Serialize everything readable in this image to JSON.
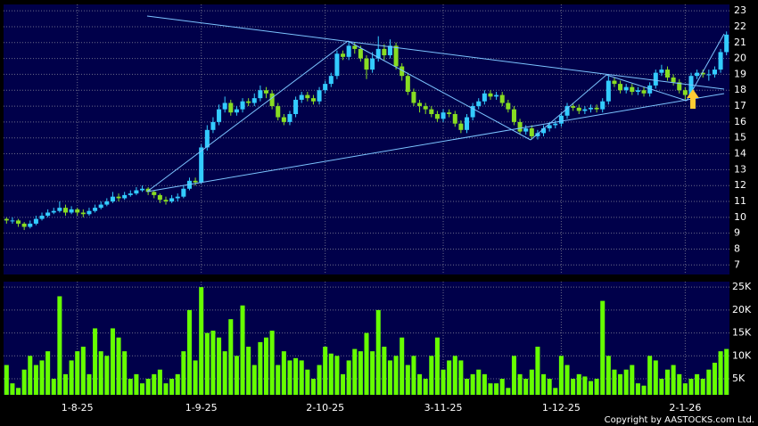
{
  "chart_data": {
    "type": "candlestick",
    "categories": [
      null,
      null,
      null,
      null,
      null,
      null,
      null,
      null,
      null,
      null,
      null,
      null,
      "1-8-25",
      null,
      null,
      null,
      null,
      null,
      null,
      null,
      null,
      null,
      null,
      null,
      null,
      null,
      null,
      null,
      null,
      null,
      null,
      null,
      null,
      "1-9-25",
      null,
      null,
      null,
      null,
      null,
      null,
      null,
      null,
      null,
      null,
      null,
      null,
      null,
      null,
      null,
      null,
      null,
      null,
      null,
      null,
      "2-10-25",
      null,
      null,
      null,
      null,
      null,
      null,
      null,
      null,
      null,
      null,
      null,
      null,
      null,
      null,
      null,
      null,
      null,
      null,
      null,
      "3-11-25",
      null,
      null,
      null,
      null,
      null,
      null,
      null,
      null,
      null,
      null,
      null,
      null,
      null,
      null,
      null,
      null,
      null,
      null,
      null,
      "1-12-25",
      null,
      null,
      null,
      null,
      null,
      null,
      null,
      null,
      null,
      null,
      null,
      null,
      null,
      null,
      null,
      null,
      null,
      null,
      null,
      null,
      "2-1-26",
      null,
      null,
      null,
      null,
      null,
      null,
      null
    ],
    "open": [
      9.9,
      9.8,
      9.8,
      9.6,
      9.4,
      9.6,
      9.9,
      10.1,
      10.3,
      10.4,
      10.6,
      10.3,
      10.5,
      10.3,
      10.2,
      10.4,
      10.6,
      10.8,
      11.0,
      11.3,
      11.2,
      11.4,
      11.5,
      11.7,
      11.8,
      11.6,
      11.4,
      11.1,
      11.0,
      11.2,
      11.3,
      11.8,
      12.3,
      12.2,
      14.4,
      15.5,
      16.0,
      16.8,
      17.2,
      16.6,
      16.8,
      17.3,
      17.2,
      17.5,
      18.0,
      17.8,
      17.0,
      16.3,
      16.0,
      16.5,
      17.4,
      17.7,
      17.5,
      17.3,
      18.0,
      18.4,
      18.9,
      20.3,
      20.1,
      20.8,
      20.6,
      20.0,
      19.3,
      20.0,
      20.6,
      20.2,
      20.8,
      19.5,
      18.9,
      17.9,
      17.2,
      17.0,
      16.8,
      16.5,
      16.2,
      16.6,
      16.5,
      15.9,
      15.5,
      16.3,
      17.0,
      17.3,
      17.8,
      17.6,
      17.7,
      17.2,
      16.8,
      16.0,
      15.4,
      15.6,
      15.1,
      15.3,
      15.6,
      15.8,
      15.9,
      16.4,
      17.0,
      16.9,
      16.7,
      16.8,
      16.9,
      16.8,
      17.3,
      18.6,
      18.4,
      18.0,
      18.2,
      17.9,
      18.0,
      17.8,
      18.3,
      19.1,
      19.3,
      18.8,
      18.5,
      18.0,
      17.7,
      18.9,
      19.1,
      19.0,
      19.0,
      19.3,
      20.4
    ],
    "high": [
      10.0,
      10.0,
      9.9,
      9.7,
      9.8,
      10.1,
      10.3,
      10.5,
      10.6,
      11.0,
      10.8,
      10.7,
      10.6,
      10.5,
      10.6,
      10.8,
      11.0,
      11.2,
      11.6,
      11.5,
      11.6,
      11.7,
      11.9,
      12.0,
      11.9,
      11.7,
      11.5,
      11.3,
      11.4,
      11.5,
      12.0,
      12.5,
      12.5,
      14.6,
      15.8,
      16.3,
      17.1,
      17.6,
      17.4,
      17.0,
      17.5,
      17.5,
      17.8,
      18.3,
      18.2,
      18.0,
      17.2,
      16.5,
      16.7,
      17.6,
      17.9,
      17.9,
      17.7,
      18.2,
      18.6,
      19.1,
      20.5,
      20.5,
      21.1,
      21.0,
      20.8,
      20.2,
      20.4,
      21.4,
      20.9,
      21.2,
      21.0,
      19.7,
      19.1,
      18.1,
      17.4,
      17.2,
      17.0,
      16.7,
      16.8,
      16.8,
      16.7,
      16.1,
      16.5,
      17.2,
      17.5,
      18.0,
      18.0,
      17.9,
      17.9,
      17.4,
      17.0,
      16.2,
      15.8,
      15.8,
      15.5,
      15.8,
      16.0,
      16.1,
      16.6,
      17.2,
      17.2,
      17.1,
      17.0,
      17.1,
      17.1,
      17.5,
      18.9,
      18.8,
      18.6,
      18.4,
      18.4,
      18.2,
      18.2,
      18.5,
      19.3,
      19.6,
      19.5,
      19.0,
      18.7,
      18.2,
      19.1,
      19.3,
      19.3,
      19.3,
      19.5,
      20.6,
      21.7
    ],
    "low": [
      9.6,
      9.6,
      9.4,
      9.2,
      9.3,
      9.5,
      9.8,
      10.0,
      10.2,
      10.3,
      10.1,
      10.2,
      10.1,
      10.0,
      10.1,
      10.3,
      10.5,
      10.7,
      10.9,
      11.0,
      11.1,
      11.3,
      11.4,
      11.6,
      11.4,
      11.2,
      10.9,
      10.8,
      10.9,
      11.0,
      11.2,
      11.7,
      12.0,
      12.1,
      14.2,
      15.3,
      15.8,
      16.6,
      16.4,
      16.4,
      16.6,
      17.0,
      17.0,
      17.3,
      17.5,
      16.8,
      16.1,
      15.8,
      15.8,
      16.3,
      17.2,
      17.3,
      17.1,
      17.1,
      17.8,
      18.2,
      18.7,
      19.9,
      19.9,
      20.3,
      19.8,
      18.7,
      19.1,
      19.8,
      19.9,
      20.0,
      19.3,
      18.6,
      17.7,
      17.0,
      16.6,
      16.5,
      16.3,
      16.0,
      16.0,
      16.3,
      15.7,
      15.3,
      15.3,
      16.1,
      16.8,
      17.1,
      17.4,
      17.4,
      17.0,
      16.6,
      15.8,
      15.2,
      15.2,
      14.9,
      14.9,
      15.1,
      15.4,
      15.6,
      15.7,
      16.2,
      16.7,
      16.5,
      16.5,
      16.6,
      16.6,
      16.6,
      17.1,
      18.2,
      17.8,
      17.8,
      17.7,
      17.7,
      17.6,
      17.6,
      18.1,
      18.9,
      18.6,
      18.3,
      17.8,
      17.4,
      17.5,
      18.7,
      18.8,
      18.6,
      18.8,
      19.1,
      20.2
    ],
    "close": [
      9.8,
      9.8,
      9.6,
      9.4,
      9.6,
      9.9,
      10.1,
      10.3,
      10.4,
      10.6,
      10.3,
      10.5,
      10.3,
      10.2,
      10.4,
      10.6,
      10.8,
      11.0,
      11.3,
      11.2,
      11.4,
      11.5,
      11.7,
      11.8,
      11.6,
      11.4,
      11.1,
      11.0,
      11.2,
      11.3,
      11.8,
      12.3,
      12.2,
      14.4,
      15.5,
      16.0,
      16.8,
      17.2,
      16.6,
      16.8,
      17.3,
      17.2,
      17.5,
      18.0,
      17.8,
      17.0,
      16.3,
      16.0,
      16.5,
      17.4,
      17.7,
      17.5,
      17.3,
      18.0,
      18.4,
      18.9,
      20.3,
      20.1,
      20.8,
      20.6,
      20.0,
      19.3,
      20.0,
      20.6,
      20.2,
      20.8,
      19.5,
      18.9,
      17.9,
      17.2,
      17.0,
      16.8,
      16.5,
      16.2,
      16.6,
      16.5,
      15.9,
      15.5,
      16.3,
      17.0,
      17.3,
      17.8,
      17.6,
      17.7,
      17.2,
      16.8,
      16.0,
      15.4,
      15.6,
      15.1,
      15.3,
      15.6,
      15.8,
      15.9,
      16.4,
      17.0,
      16.9,
      16.7,
      16.8,
      16.9,
      16.8,
      17.3,
      18.6,
      18.4,
      18.0,
      18.2,
      17.9,
      18.0,
      17.8,
      18.3,
      19.1,
      19.3,
      18.8,
      18.5,
      18.0,
      17.7,
      18.9,
      19.1,
      19.0,
      19.0,
      19.3,
      20.4,
      21.5
    ],
    "up_color": "#33ccff",
    "down_color": "#88dd22",
    "ylim": [
      6.4,
      23.4
    ],
    "yticks": [
      7,
      8,
      9,
      10,
      11,
      12,
      13,
      14,
      15,
      16,
      17,
      18,
      19,
      20,
      21,
      22,
      23
    ],
    "grid": true,
    "volume": {
      "color": "#66ff00",
      "values": [
        8000,
        4000,
        3000,
        7000,
        10000,
        8000,
        9000,
        11000,
        5000,
        23000,
        6000,
        9000,
        11000,
        12000,
        6000,
        16000,
        11000,
        10000,
        16000,
        14000,
        11000,
        5000,
        6000,
        4000,
        5000,
        6000,
        7000,
        4000,
        5000,
        6000,
        11000,
        20000,
        9000,
        25000,
        15000,
        15500,
        14000,
        11000,
        18000,
        10000,
        21000,
        12000,
        8000,
        13000,
        14000,
        15500,
        8000,
        11000,
        9000,
        9500,
        9000,
        7000,
        5000,
        8000,
        12000,
        10500,
        10000,
        6000,
        9000,
        11500,
        11000,
        15000,
        11000,
        20000,
        12000,
        9000,
        10000,
        14000,
        8000,
        10000,
        6000,
        5000,
        10000,
        14000,
        7000,
        9000,
        10000,
        9000,
        5000,
        6000,
        7000,
        6000,
        4000,
        4000,
        5000,
        3000,
        10000,
        6000,
        5000,
        7000,
        12000,
        6000,
        5000,
        3000,
        10000,
        8000,
        5000,
        6000,
        5500,
        4500,
        5000,
        22000,
        10000,
        7000,
        6000,
        7000,
        8000,
        4000,
        3500,
        10000,
        9000,
        5000,
        7000,
        8000,
        6000,
        4000,
        5000,
        6000,
        5000,
        7000,
        8500,
        11000,
        11500
      ],
      "ylim": [
        1500,
        26200
      ],
      "yticks": [
        {
          "value": 5000,
          "label": "5K"
        },
        {
          "value": 10000,
          "label": "10K"
        },
        {
          "value": 15000,
          "label": "15K"
        },
        {
          "value": 20000,
          "label": "20K"
        },
        {
          "value": 25000,
          "label": "25K"
        }
      ]
    },
    "copyright": "Copyright by AASTOCKS.com Ltd."
  }
}
